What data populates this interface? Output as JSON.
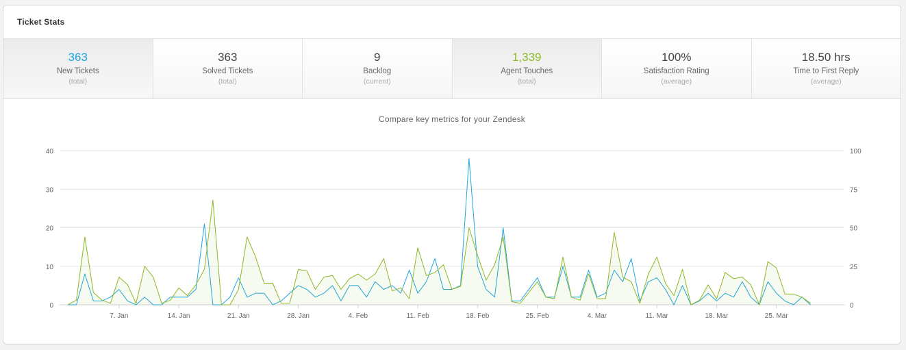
{
  "panel": {
    "title": "Ticket Stats"
  },
  "stats": [
    {
      "value": "363",
      "label": "New Tickets",
      "sub": "(total)",
      "color": "#1ea6df",
      "selected": true
    },
    {
      "value": "363",
      "label": "Solved Tickets",
      "sub": "(total)",
      "color": "#444444",
      "selected": false
    },
    {
      "value": "9",
      "label": "Backlog",
      "sub": "(current)",
      "color": "#444444",
      "selected": false
    },
    {
      "value": "1,339",
      "label": "Agent Touches",
      "sub": "(total)",
      "color": "#8db728",
      "selected": true
    },
    {
      "value": "100%",
      "label": "Satisfaction Rating",
      "sub": "(average)",
      "color": "#444444",
      "selected": false
    },
    {
      "value": "18.50 hrs",
      "label": "Time to First Reply",
      "sub": "(average)",
      "color": "#444444",
      "selected": false
    }
  ],
  "chart_data": {
    "type": "line",
    "title": "Compare key metrics for your Zendesk",
    "x_tick_labels": [
      "7. Jan",
      "14. Jan",
      "21. Jan",
      "28. Jan",
      "4. Feb",
      "11. Feb",
      "18. Feb",
      "25. Feb",
      "4. Mar",
      "11. Mar",
      "18. Mar",
      "25. Mar"
    ],
    "x_tick_days": [
      7,
      14,
      21,
      28,
      35,
      42,
      49,
      56,
      63,
      70,
      77,
      84
    ],
    "x_range": [
      1,
      91
    ],
    "y_left": {
      "ticks": [
        0,
        10,
        20,
        30,
        40
      ],
      "range": [
        0,
        40
      ]
    },
    "y_right": {
      "ticks": [
        0,
        25,
        50,
        75,
        100
      ],
      "range": [
        0,
        100
      ]
    },
    "grid": true,
    "legend": "none",
    "series": [
      {
        "axis": "left",
        "color": "#1ea6df",
        "fill": false,
        "values": [
          0,
          0,
          8,
          1,
          1,
          2,
          4,
          1,
          0,
          2,
          0,
          0,
          2,
          2,
          2,
          4,
          21,
          0,
          0,
          2,
          7,
          2,
          3,
          3,
          0,
          1,
          3,
          5,
          4,
          2,
          3,
          5,
          1,
          5,
          5,
          2,
          6,
          4,
          5,
          3,
          9,
          3,
          6,
          12,
          4,
          4,
          5,
          38,
          10,
          4,
          2,
          20,
          1,
          1,
          4,
          7,
          2,
          2,
          10,
          2,
          2,
          9,
          2,
          3,
          9,
          6,
          12,
          1,
          6,
          7,
          4,
          0,
          5,
          0,
          1,
          3,
          1,
          3,
          2,
          6,
          2,
          0,
          6,
          3,
          1,
          0,
          2,
          0
        ]
      },
      {
        "axis": "right",
        "color": "#8db728",
        "fill": true,
        "values": [
          0,
          3,
          44,
          8,
          3,
          1,
          18,
          13,
          1,
          25,
          18,
          1,
          3,
          11,
          6,
          13,
          23,
          68,
          0,
          0,
          10,
          44,
          31,
          14,
          14,
          1,
          1,
          23,
          22,
          10,
          18,
          19,
          10,
          17,
          20,
          16,
          20,
          30,
          9,
          11,
          4,
          37,
          19,
          21,
          26,
          10,
          12,
          50,
          32,
          16,
          26,
          44,
          2,
          1,
          8,
          15,
          5,
          4,
          31,
          5,
          3,
          20,
          4,
          4,
          47,
          18,
          15,
          1,
          20,
          31,
          14,
          6,
          23,
          0,
          3,
          13,
          4,
          21,
          17,
          18,
          13,
          0,
          28,
          24,
          7,
          7,
          5,
          1
        ]
      }
    ]
  }
}
